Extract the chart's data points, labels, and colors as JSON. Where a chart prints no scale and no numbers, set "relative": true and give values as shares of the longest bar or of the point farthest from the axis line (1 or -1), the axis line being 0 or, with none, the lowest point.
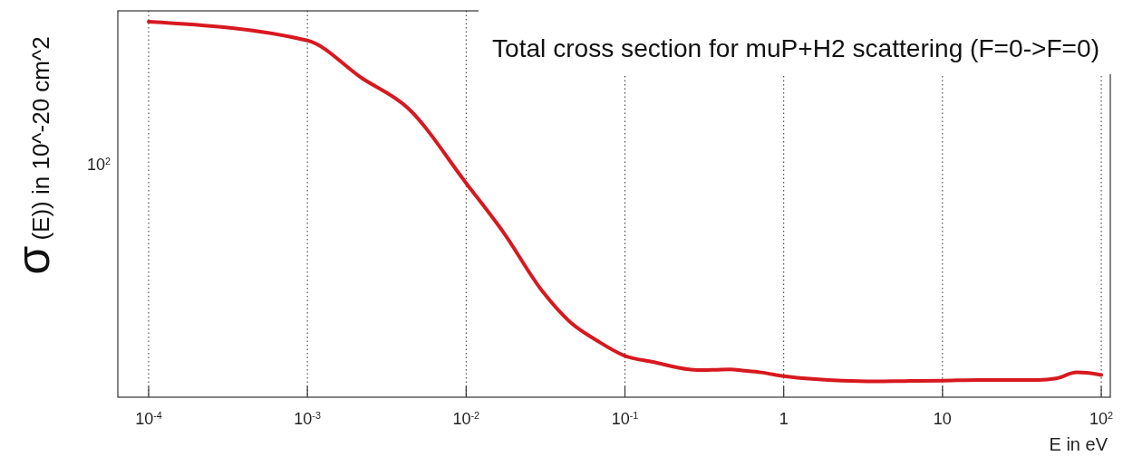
{
  "chart_data": {
    "type": "line",
    "title": "Total cross section for muP+H2 scattering (F=0->F=0)",
    "xlabel": "E in eV",
    "ylabel": "σ(E)) in 10^-20 cm^2",
    "log": "x",
    "grid": "x",
    "relative": true,
    "annotations": [
      "10$^{2}$"
    ],
    "marker": "none",
    "line_style": "solid",
    "xlim": [
      6.4e-05,
      114
    ],
    "xticks": [
      {
        "value": 0.0001,
        "label": "10$^{-4}$"
      },
      {
        "value": 0.001,
        "label": "10$^{-3}$"
      },
      {
        "value": 0.01,
        "label": "10$^{-2}$"
      },
      {
        "value": 0.1,
        "label": "10$^{-1}$"
      },
      1,
      10,
      {
        "value": 100,
        "label": "10$^{2}$"
      }
    ],
    "x": [
      0.0001,
      0.001,
      0.0022,
      0.0043,
      0.01,
      0.0171,
      0.0305,
      0.0452,
      0.0671,
      0.1,
      0.15,
      0.254,
      0.31,
      0.38,
      0.46,
      0.55,
      0.72,
      1,
      1.58,
      2.33,
      3.7,
      5.8,
      10,
      16.9,
      25,
      40,
      51.9,
      70,
      80,
      100
    ],
    "series": [
      {
        "color": "#d7191f",
        "values": [
          1,
          0.95,
          0.85,
          0.77,
          0.57,
          0.44,
          0.28,
          0.2,
          0.15,
          0.11,
          0.094,
          0.074,
          0.072,
          0.073,
          0.074,
          0.071,
          0.066,
          0.056,
          0.048,
          0.044,
          0.042,
          0.043,
          0.044,
          0.046,
          0.046,
          0.046,
          0.05,
          0.066,
          0.065,
          0.059
        ]
      }
    ]
  }
}
